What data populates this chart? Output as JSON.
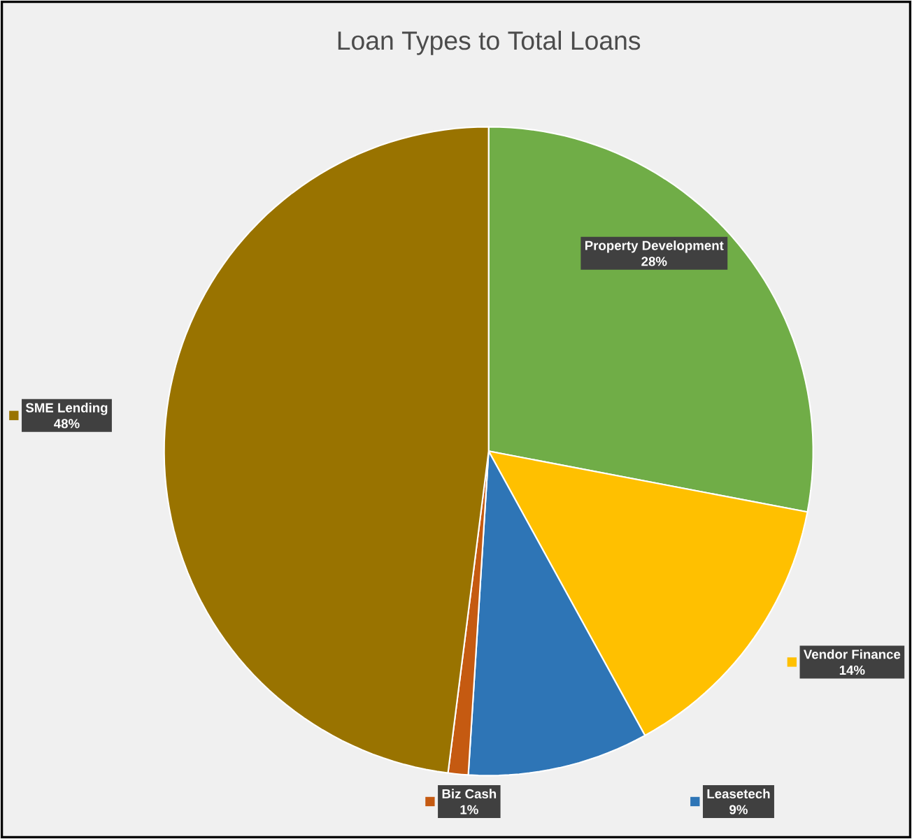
{
  "chart_data": {
    "type": "pie",
    "title": "Loan Types to Total Loans",
    "categories": [
      "Property Development",
      "Vendor Finance",
      "Leasetech",
      "Biz Cash",
      "SME Lending"
    ],
    "values": [
      28,
      14,
      9,
      1,
      48
    ],
    "value_labels": [
      "28%",
      "14%",
      "9%",
      "1%",
      "48%"
    ],
    "colors": [
      "#70ad47",
      "#ffc000",
      "#2e75b6",
      "#c55a11",
      "#997300"
    ],
    "legend": "bottom"
  }
}
